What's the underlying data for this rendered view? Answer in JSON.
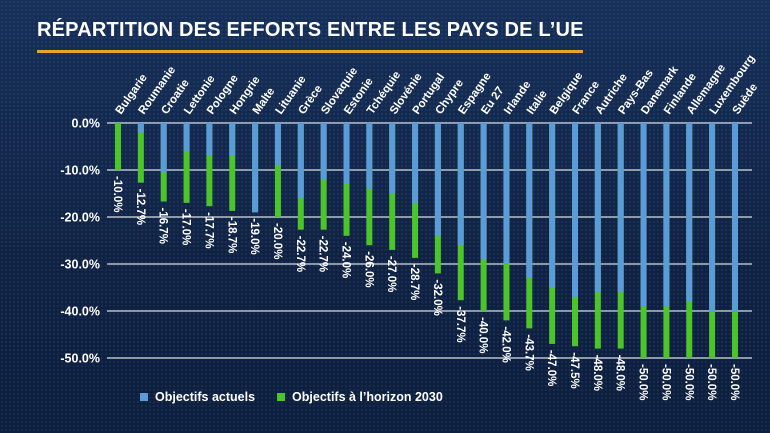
{
  "title": "RÉPARTITION DES EFFORTS ENTRE LES PAYS DE L’UE",
  "colors": {
    "current": "#5b9bd8",
    "target2030": "#4cc52a",
    "accent_rule": "#e3a52a",
    "text": "#ffffff",
    "gridline": "#d8dde6"
  },
  "chart_data": {
    "type": "bar",
    "title": "RÉPARTITION DES EFFORTS ENTRE LES PAYS DE L’UE",
    "xlabel": "",
    "ylabel": "",
    "ylim": [
      -50,
      0
    ],
    "yticks": [
      0,
      -10,
      -20,
      -30,
      -40,
      -50
    ],
    "ytick_labels": [
      "0.0%",
      "-10.0%",
      "-20.0%",
      "-30.0%",
      "-40.0%",
      "-50.0%"
    ],
    "grid": true,
    "legend_position": "bottom",
    "categories": [
      "Bulgarie",
      "Roumanie",
      "Croatie",
      "Lettonie",
      "Pologne",
      "Hongrie",
      "Malte",
      "Lituanie",
      "Grèce",
      "Slovaquie",
      "Estonie",
      "Tchéquie",
      "Slovénie",
      "Portugal",
      "Chypre",
      "Espagne",
      "Eu 27",
      "Irlande",
      "Italie",
      "Belgique",
      "France",
      "Autriche",
      "Pays-Bas",
      "Danemark",
      "Finlande",
      "Allemagne",
      "Luxembourg",
      "Suède"
    ],
    "series": [
      {
        "name": "Objectifs actuels",
        "color": "#5b9bd8",
        "values": [
          0,
          -2,
          -10.5,
          -6,
          -7,
          -7,
          -19,
          -9,
          -16,
          -12,
          -13,
          -14,
          -15,
          -17,
          -24,
          -26,
          -29,
          -30,
          -33,
          -35,
          -37,
          -36,
          -36,
          -39,
          -39,
          -38,
          -40,
          -40
        ]
      },
      {
        "name": "Objectifs à l’horizon 2030",
        "color": "#4cc52a",
        "values": [
          -10.0,
          -12.7,
          -16.7,
          -17.0,
          -17.7,
          -18.7,
          -19.0,
          -20.0,
          -22.7,
          -22.7,
          -24.0,
          -26.0,
          -27.0,
          -28.7,
          -32.0,
          -37.7,
          -40.0,
          -42.0,
          -43.7,
          -47.0,
          -47.5,
          -48.0,
          -48.0,
          -50.0,
          -50.0,
          -50.0,
          -50.0,
          -50.0
        ]
      }
    ],
    "data_labels": [
      "-10.0%",
      "-12.7%",
      "-16.7%",
      "-17.0%",
      "-17.7%",
      "-18.7%",
      "-19.0%",
      "-20.0%",
      "-22.7%",
      "-22.7%",
      "-24.0%",
      "-26.0%",
      "-27.0%",
      "-28.7%",
      "-32.0%",
      "-37.7%",
      "-40.0%",
      "-42.0%",
      "-43.7%",
      "-47.0%",
      "-47.5%",
      "-48.0%",
      "-48.0%",
      "-50.0%",
      "-50.0%",
      "-50.0%",
      "-50.0%",
      "-50.0%"
    ]
  },
  "legend": {
    "items": [
      {
        "label": "Objectifs actuels",
        "color": "#5b9bd8"
      },
      {
        "label": "Objectifs à l’horizon 2030",
        "color": "#4cc52a"
      }
    ]
  }
}
